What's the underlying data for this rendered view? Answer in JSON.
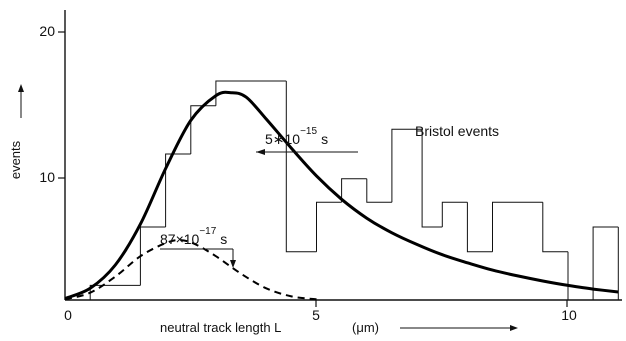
{
  "chart_data": {
    "type": "line",
    "xlabel": "neutral track length L",
    "xunit": "(μm)",
    "ylabel": "events",
    "x_ticks": [
      "0",
      "5",
      "10"
    ],
    "y_ticks": [
      "10",
      "20"
    ],
    "xlim": [
      0,
      11.2
    ],
    "ylim": [
      0,
      20
    ],
    "grid": false,
    "histogram": {
      "name": "Bristol events",
      "bins": [
        {
          "x0": 0,
          "x1": 0.5,
          "count": 0
        },
        {
          "x0": 0.5,
          "x1": 1.5,
          "count": 1
        },
        {
          "x0": 1.5,
          "x1": 2.0,
          "count": 5
        },
        {
          "x0": 2.0,
          "x1": 2.5,
          "count": 10
        },
        {
          "x0": 2.5,
          "x1": 3.0,
          "count": 13.3
        },
        {
          "x0": 3.0,
          "x1": 3.5,
          "count": 15
        },
        {
          "x0": 3.5,
          "x1": 4.4,
          "count": 15
        },
        {
          "x0": 4.4,
          "x1": 5.0,
          "count": 3.3
        },
        {
          "x0": 5.0,
          "x1": 5.5,
          "count": 6.7
        },
        {
          "x0": 5.5,
          "x1": 6.0,
          "count": 8.3
        },
        {
          "x0": 6.0,
          "x1": 6.5,
          "count": 6.7
        },
        {
          "x0": 6.5,
          "x1": 7.1,
          "count": 11.7
        },
        {
          "x0": 7.1,
          "x1": 7.5,
          "count": 5
        },
        {
          "x0": 7.5,
          "x1": 8.0,
          "count": 6.7
        },
        {
          "x0": 8.0,
          "x1": 8.5,
          "count": 3.3
        },
        {
          "x0": 8.5,
          "x1": 9.5,
          "count": 6.7
        },
        {
          "x0": 9.5,
          "x1": 10.0,
          "count": 3.3
        },
        {
          "x0": 10.0,
          "x1": 10.5,
          "count": 0
        },
        {
          "x0": 10.5,
          "x1": 11.0,
          "count": 5
        }
      ]
    },
    "series": [
      {
        "label": "5*10^-15 s",
        "style": "solid",
        "x": [
          0,
          0.5,
          1.0,
          1.5,
          2.0,
          2.5,
          3.0,
          3.3,
          3.6,
          4.0,
          4.5,
          5.0,
          5.5,
          6.0,
          6.5,
          7.0,
          7.5,
          8.0,
          8.5,
          9.0,
          9.5,
          10.0,
          10.5,
          11.0
        ],
        "y": [
          0.1,
          0.8,
          2.4,
          5.2,
          9.0,
          12.3,
          14.0,
          14.2,
          13.9,
          12.4,
          10.4,
          8.5,
          6.9,
          5.6,
          4.6,
          3.8,
          3.1,
          2.55,
          2.05,
          1.65,
          1.3,
          1.0,
          0.75,
          0.55
        ]
      },
      {
        "label": "87×10^-17 s",
        "style": "dashed",
        "x": [
          0,
          0.5,
          1.0,
          1.5,
          2.0,
          2.3,
          2.6,
          3.0,
          3.5,
          4.0,
          4.5,
          5.0
        ],
        "y": [
          0.05,
          0.5,
          1.6,
          3.0,
          3.9,
          4.1,
          3.8,
          3.0,
          1.8,
          0.8,
          0.25,
          0.05
        ]
      }
    ],
    "annotations": [
      {
        "text_main": "5∗10",
        "text_sup": "−15",
        "text_unit": "s"
      },
      {
        "text_main": "87×10",
        "text_sup": "−17",
        "text_unit": "s"
      },
      {
        "text": "Bristol events"
      }
    ]
  }
}
